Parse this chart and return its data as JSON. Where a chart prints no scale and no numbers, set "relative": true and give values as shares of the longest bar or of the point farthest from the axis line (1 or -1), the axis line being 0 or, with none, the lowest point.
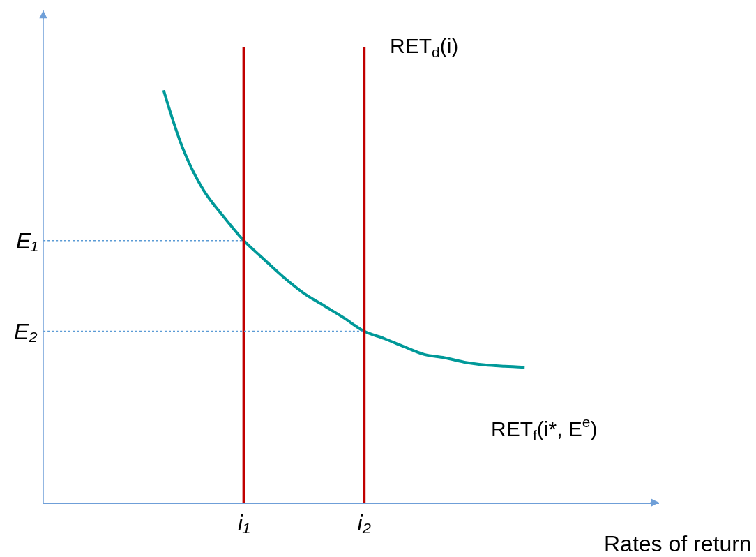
{
  "chart_data": {
    "type": "line",
    "relative": true,
    "xlabel": "Rates of return",
    "grid": false,
    "marker": "none",
    "categories": [
      null,
      null,
      null,
      null,
      null,
      null,
      null,
      null,
      null,
      null,
      "i₁",
      null,
      null,
      null,
      null,
      null,
      "i₂",
      null,
      null,
      null,
      null,
      null,
      null,
      null,
      null,
      null,
      null,
      null,
      null,
      null,
      null
    ],
    "series": [
      {
        "color": "#009999",
        "line_style": "solid",
        "values": [
          null,
          null,
          null,
          null,
          null,
          null,
          0.905,
          0.773,
          0.685,
          0.627,
          0.575,
          0.534,
          0.494,
          0.459,
          0.432,
          0.405,
          0.376,
          0.36,
          0.342,
          0.325,
          0.318,
          0.308,
          0.302,
          0.299,
          0.297,
          null,
          null,
          null,
          null,
          null,
          null
        ]
      },
      {
        "color": "#c00000",
        "line_style": "solid",
        "x": [
          "i₁",
          "i₁"
        ],
        "values": [
          0,
          1
        ]
      },
      {
        "color": "#c00000",
        "line_style": "solid",
        "x": [
          "i₂",
          "i₂"
        ],
        "values": [
          0,
          1
        ]
      },
      {
        "color": "#5b9bd5",
        "line_style": "dotted",
        "values": [
          0.575,
          0.575,
          0.575,
          0.575,
          0.575,
          0.575,
          0.575,
          0.575,
          0.575,
          0.575,
          0.575,
          null,
          null,
          null,
          null,
          null,
          null,
          null,
          null,
          null,
          null,
          null,
          null,
          null,
          null,
          null,
          null,
          null,
          null,
          null,
          null
        ]
      },
      {
        "color": "#5b9bd5",
        "line_style": "dotted",
        "values": [
          0.376,
          0.376,
          0.376,
          0.376,
          0.376,
          0.376,
          0.376,
          0.376,
          0.376,
          0.376,
          0.376,
          0.376,
          0.376,
          0.376,
          0.376,
          0.376,
          0.376,
          null,
          null,
          null,
          null,
          null,
          null,
          null,
          null,
          null,
          null,
          null,
          null,
          null,
          null
        ]
      }
    ],
    "annotations": [
      "E₁",
      "E₂",
      {
        "text": "RET$_{d}$(i)",
        "x": "i₂",
        "y": 1
      },
      "RET$_{f}$(i*, E$^{e}$)"
    ]
  }
}
